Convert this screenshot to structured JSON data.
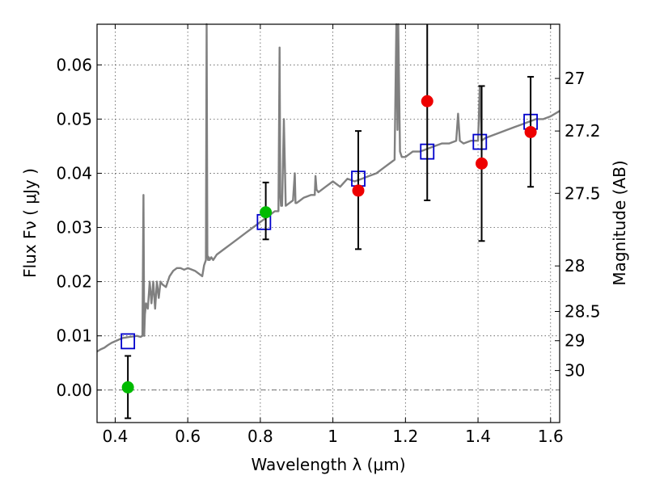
{
  "chart_data": {
    "type": "scatter",
    "xlabel": "Wavelength  λ (μm)",
    "ylabel": "Flux  Fν  ( μJy )",
    "y2label": "Magnitude (AB)",
    "xlim": [
      0.35,
      1.625
    ],
    "ylim": [
      -0.006,
      0.0675
    ],
    "grid": true,
    "x_ticks": [
      0.4,
      0.6,
      0.8,
      1.0,
      1.2,
      1.4,
      1.6
    ],
    "x_tick_labels": [
      "0.4",
      "0.6",
      "0.8",
      "1",
      "1.2",
      "1.4",
      "1.6"
    ],
    "y_ticks": [
      0.0,
      0.01,
      0.02,
      0.03,
      0.04,
      0.05,
      0.06
    ],
    "y_tick_labels": [
      "0.00",
      "0.01",
      "0.02",
      "0.03",
      "0.04",
      "0.05",
      "0.06"
    ],
    "y2_ticks": [
      {
        "label": "27",
        "flux": 0.0575
      },
      {
        "label": "27.2",
        "flux": 0.0478
      },
      {
        "label": "27.5",
        "flux": 0.0363
      },
      {
        "label": "28",
        "flux": 0.0229
      },
      {
        "label": "28.5",
        "flux": 0.0145
      },
      {
        "label": "29",
        "flux": 0.0091
      },
      {
        "label": "30",
        "flux": 0.0036
      }
    ],
    "zero_line": 0.0,
    "colors": {
      "spectrum": "#808080",
      "model_points": "#0000cc",
      "detections_red": "#ee0000",
      "detections_green": "#00bb00",
      "errorbars": "#000000"
    },
    "series": [
      {
        "kind": "spectrum",
        "x": [
          0.35,
          0.36,
          0.37,
          0.38,
          0.39,
          0.4,
          0.41,
          0.42,
          0.43,
          0.44,
          0.45,
          0.46,
          0.47,
          0.475,
          0.478,
          0.48,
          0.482,
          0.485,
          0.49,
          0.495,
          0.5,
          0.505,
          0.51,
          0.515,
          0.52,
          0.525,
          0.53,
          0.54,
          0.55,
          0.56,
          0.57,
          0.58,
          0.59,
          0.6,
          0.62,
          0.64,
          0.645,
          0.65,
          0.652,
          0.654,
          0.656,
          0.658,
          0.66,
          0.665,
          0.67,
          0.68,
          0.7,
          0.72,
          0.74,
          0.76,
          0.78,
          0.8,
          0.82,
          0.84,
          0.85,
          0.853,
          0.855,
          0.857,
          0.86,
          0.865,
          0.87,
          0.88,
          0.89,
          0.895,
          0.897,
          0.9,
          0.91,
          0.92,
          0.94,
          0.95,
          0.952,
          0.955,
          0.96,
          0.98,
          1.0,
          1.02,
          1.04,
          1.06,
          1.08,
          1.1,
          1.12,
          1.14,
          1.16,
          1.17,
          1.175,
          1.178,
          1.18,
          1.185,
          1.19,
          1.2,
          1.22,
          1.24,
          1.26,
          1.28,
          1.3,
          1.32,
          1.34,
          1.345,
          1.35,
          1.36,
          1.38,
          1.4,
          1.405,
          1.41,
          1.42,
          1.44,
          1.46,
          1.48,
          1.5,
          1.52,
          1.54,
          1.56,
          1.58,
          1.6,
          1.625
        ],
        "y": [
          0.0071,
          0.0075,
          0.0078,
          0.0083,
          0.0087,
          0.009,
          0.0093,
          0.0096,
          0.0097,
          0.0098,
          0.0099,
          0.01,
          0.0098,
          0.01,
          0.036,
          0.01,
          0.014,
          0.016,
          0.015,
          0.02,
          0.016,
          0.02,
          0.015,
          0.02,
          0.017,
          0.02,
          0.0195,
          0.019,
          0.021,
          0.022,
          0.0225,
          0.0225,
          0.0222,
          0.0225,
          0.022,
          0.021,
          0.023,
          0.024,
          0.07,
          0.025,
          0.024,
          0.0245,
          0.024,
          0.0245,
          0.024,
          0.025,
          0.026,
          0.027,
          0.028,
          0.029,
          0.03,
          0.031,
          0.032,
          0.033,
          0.033,
          0.0632,
          0.036,
          0.034,
          0.034,
          0.05,
          0.034,
          0.0345,
          0.035,
          0.04,
          0.0345,
          0.0345,
          0.035,
          0.0355,
          0.036,
          0.036,
          0.0395,
          0.037,
          0.0365,
          0.0375,
          0.0385,
          0.0375,
          0.039,
          0.0385,
          0.039,
          0.0395,
          0.04,
          0.041,
          0.042,
          0.0425,
          0.07,
          0.048,
          0.07,
          0.044,
          0.043,
          0.043,
          0.044,
          0.044,
          0.0445,
          0.045,
          0.0455,
          0.0455,
          0.046,
          0.051,
          0.046,
          0.0455,
          0.046,
          0.046,
          0.056,
          0.046,
          0.0465,
          0.047,
          0.0475,
          0.048,
          0.0485,
          0.049,
          0.0495,
          0.05,
          0.05,
          0.0505,
          0.0515
        ]
      },
      {
        "kind": "model_points",
        "x": [
          0.435,
          0.81,
          1.07,
          1.26,
          1.405,
          1.545
        ],
        "y": [
          0.009,
          0.031,
          0.039,
          0.044,
          0.0458,
          0.0495
        ]
      },
      {
        "kind": "detections_red",
        "x": [
          1.07,
          1.26,
          1.41,
          1.545
        ],
        "y": [
          0.0368,
          0.0533,
          0.0418,
          0.0476
        ],
        "err_low": [
          0.0108,
          0.0183,
          0.0143,
          0.0101
        ],
        "err_high": [
          0.011,
          0.0147,
          0.0143,
          0.0102
        ]
      },
      {
        "kind": "detections_green",
        "x": [
          0.435,
          0.815
        ],
        "y": [
          0.0005,
          0.0328
        ],
        "err_low": [
          0.0057,
          0.005
        ],
        "err_high": [
          0.0058,
          0.0055
        ]
      }
    ]
  }
}
